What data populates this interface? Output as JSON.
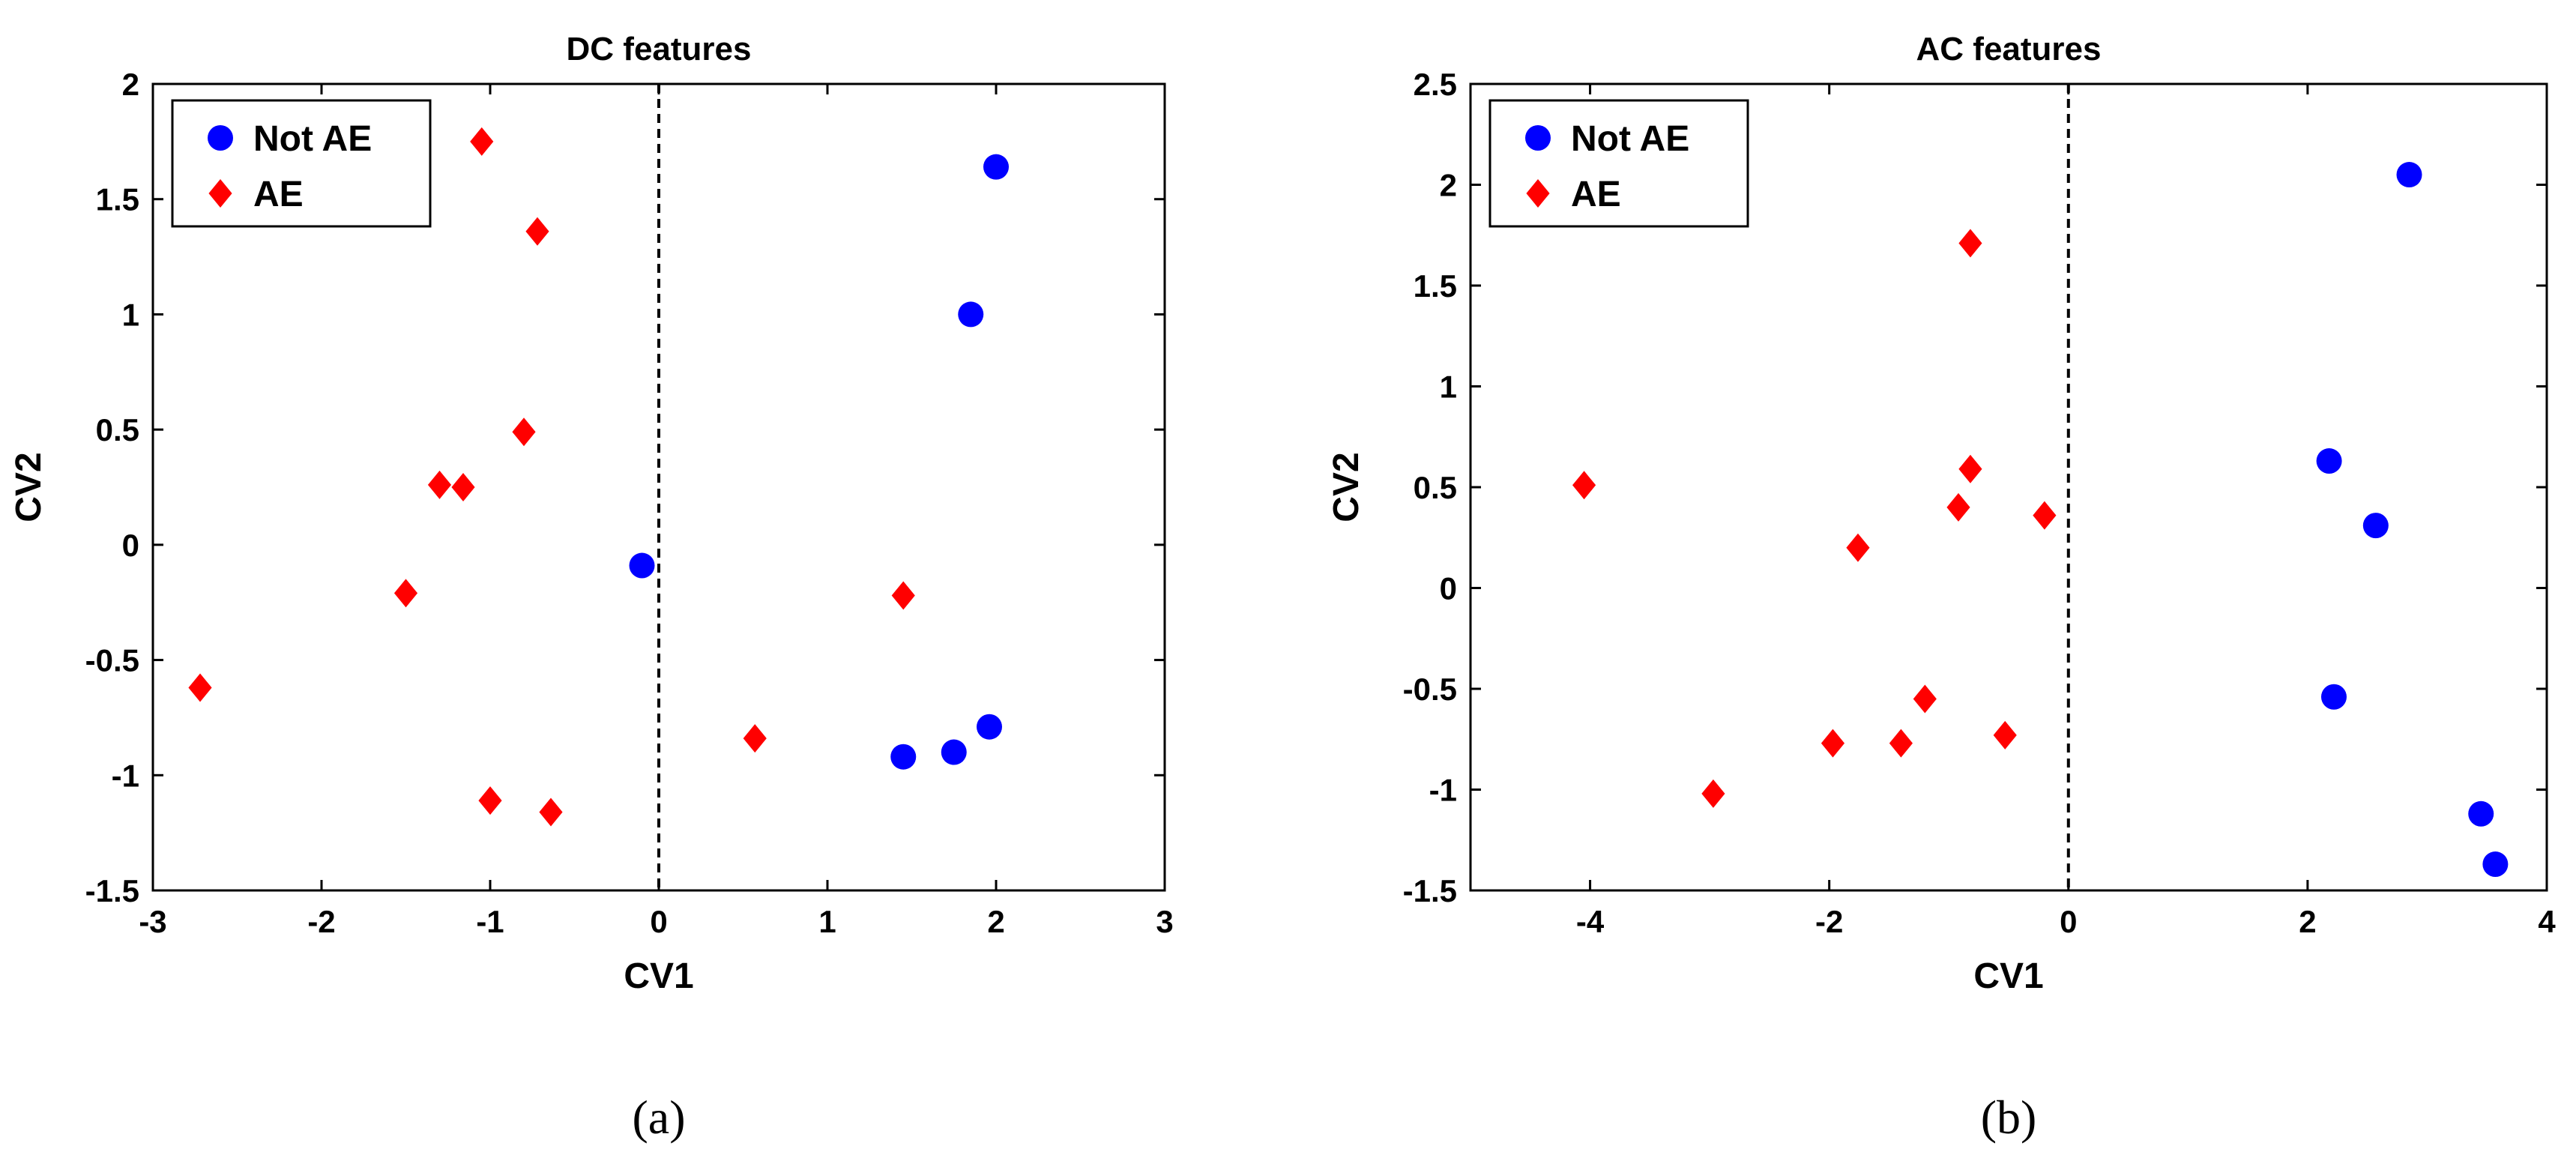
{
  "colors": {
    "not_ae": "#0000ff",
    "ae": "#ff0000",
    "axis": "#000000",
    "background": "#ffffff"
  },
  "chart_data": [
    {
      "type": "scatter",
      "title": "DC features",
      "xlabel": "CV1",
      "ylabel": "CV2",
      "caption": "(a)",
      "xlim": [
        -3,
        3
      ],
      "ylim": [
        -1.5,
        2
      ],
      "xticks": [
        -3,
        -2,
        -1,
        0,
        1,
        2,
        3
      ],
      "yticks": [
        -1.5,
        -1,
        -0.5,
        0,
        0.5,
        1,
        1.5,
        2
      ],
      "xtick_labels": [
        "-3",
        "-2",
        "-1",
        "0",
        "1",
        "2",
        "3"
      ],
      "ytick_labels": [
        "-1.5",
        "-1",
        "-0.5",
        "0",
        "0.5",
        "1",
        "1.5",
        "2"
      ],
      "vertical_line_x": 0,
      "grid": false,
      "legend_position": "top-left",
      "series": [
        {
          "name": "Not AE",
          "marker": "circle",
          "color": "#0000ff",
          "points": [
            [
              -0.1,
              -0.09
            ],
            [
              1.85,
              1.0
            ],
            [
              2.0,
              1.64
            ],
            [
              1.45,
              -0.92
            ],
            [
              1.75,
              -0.9
            ],
            [
              1.96,
              -0.79
            ]
          ]
        },
        {
          "name": "AE",
          "marker": "diamond",
          "color": "#ff0000",
          "points": [
            [
              -1.05,
              1.75
            ],
            [
              -0.72,
              1.36
            ],
            [
              -0.8,
              0.49
            ],
            [
              -1.3,
              0.26
            ],
            [
              -1.16,
              0.25
            ],
            [
              -1.5,
              -0.21
            ],
            [
              -2.72,
              -0.62
            ],
            [
              -1.0,
              -1.11
            ],
            [
              -0.64,
              -1.16
            ],
            [
              0.57,
              -0.84
            ],
            [
              1.45,
              -0.22
            ]
          ]
        }
      ]
    },
    {
      "type": "scatter",
      "title": "AC features",
      "xlabel": "CV1",
      "ylabel": "CV2",
      "caption": "(b)",
      "xlim": [
        -5,
        4
      ],
      "ylim": [
        -1.5,
        2.5
      ],
      "xticks": [
        -4,
        -2,
        0,
        2,
        4
      ],
      "yticks": [
        -1.5,
        -1,
        -0.5,
        0,
        0.5,
        1,
        1.5,
        2,
        2.5
      ],
      "xtick_labels": [
        "-4",
        "-2",
        "0",
        "2",
        "4"
      ],
      "ytick_labels": [
        "-1.5",
        "-1",
        "-0.5",
        "0",
        "0.5",
        "1",
        "1.5",
        "2",
        "2.5"
      ],
      "vertical_line_x": 0,
      "grid": false,
      "legend_position": "top-left",
      "series": [
        {
          "name": "Not AE",
          "marker": "circle",
          "color": "#0000ff",
          "points": [
            [
              2.85,
              2.05
            ],
            [
              2.18,
              0.63
            ],
            [
              2.57,
              0.31
            ],
            [
              2.22,
              -0.54
            ],
            [
              3.45,
              -1.12
            ],
            [
              3.57,
              -1.37
            ]
          ]
        },
        {
          "name": "AE",
          "marker": "diamond",
          "color": "#ff0000",
          "points": [
            [
              -0.82,
              1.71
            ],
            [
              -4.05,
              0.51
            ],
            [
              -0.82,
              0.59
            ],
            [
              -0.92,
              0.4
            ],
            [
              -0.2,
              0.36
            ],
            [
              -1.76,
              0.2
            ],
            [
              -1.2,
              -0.55
            ],
            [
              -1.97,
              -0.77
            ],
            [
              -1.4,
              -0.77
            ],
            [
              -0.53,
              -0.73
            ],
            [
              -2.97,
              -1.02
            ]
          ]
        }
      ]
    }
  ]
}
